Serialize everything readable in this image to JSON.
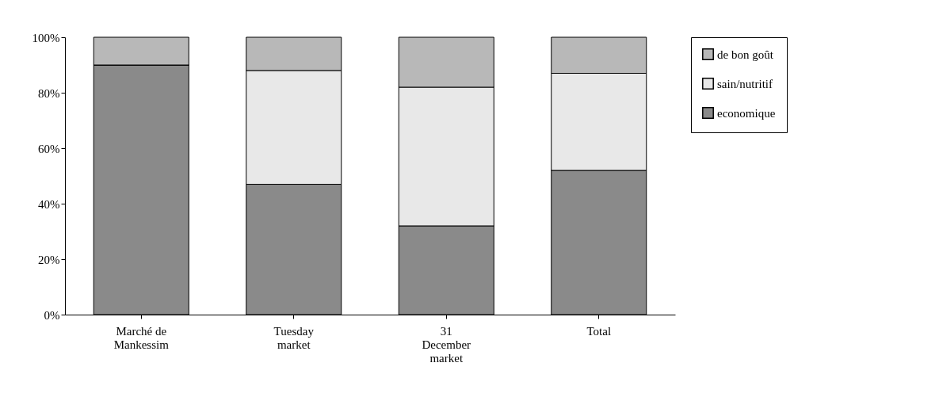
{
  "chart_data": {
    "type": "bar",
    "stacked": true,
    "categories": [
      "Marché de Mankessim",
      "Tuesday market",
      "31 December market",
      "Total"
    ],
    "series": [
      {
        "name": "economique",
        "color": "#8a8a8a",
        "values": [
          90,
          47,
          32,
          52
        ]
      },
      {
        "name": "sain/nutritif",
        "color": "#e8e8e8",
        "values": [
          0,
          41,
          50,
          35
        ]
      },
      {
        "name": "de bon goût",
        "color": "#b8b8b8",
        "values": [
          10,
          12,
          18,
          13
        ]
      }
    ],
    "ylim": [
      0,
      100
    ],
    "yticks": [
      {
        "value": 0,
        "label": "0%"
      },
      {
        "value": 20,
        "label": "20%"
      },
      {
        "value": 40,
        "label": "40%"
      },
      {
        "value": 60,
        "label": "60%"
      },
      {
        "value": 80,
        "label": "80%"
      },
      {
        "value": 100,
        "label": "100%"
      }
    ],
    "grid": false,
    "legend": "right"
  }
}
